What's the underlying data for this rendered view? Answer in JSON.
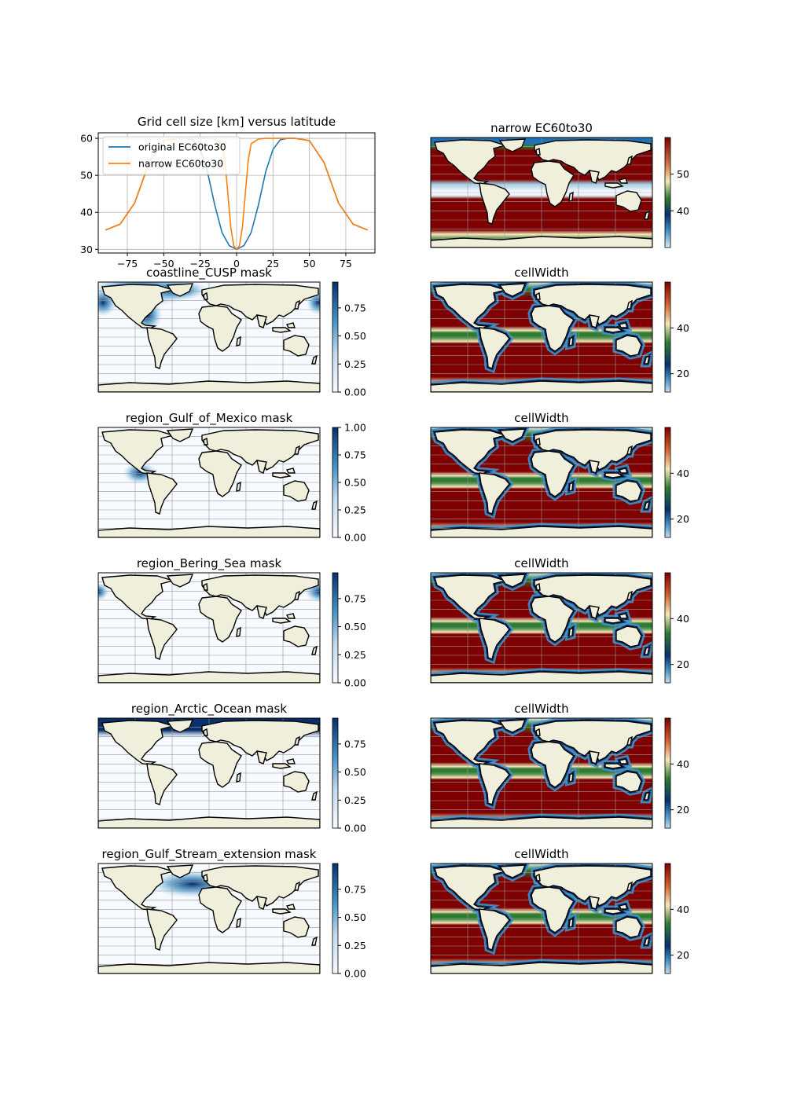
{
  "colors": {
    "blue": "#1f77b4",
    "orange": "#ff7f0e",
    "land": "#efefdb",
    "ocean_low": "#f7fbff",
    "mask_high": "#08306b"
  },
  "chart_data": [
    {
      "id": "profile",
      "type": "line",
      "title": "Grid cell size [km] versus latitude",
      "xlabel": "",
      "ylabel": "",
      "xlim": [
        -95,
        95
      ],
      "ylim": [
        29,
        61.5
      ],
      "xticks": [
        -75,
        -50,
        -25,
        0,
        25,
        50,
        75
      ],
      "yticks": [
        30,
        40,
        50,
        60
      ],
      "grid": true,
      "legend_position": "upper-left",
      "series": [
        {
          "name": "original EC60to30",
          "color": "#1f77b4",
          "x": [
            -90,
            -80,
            -70,
            -60,
            -50,
            -40,
            -35,
            -30,
            -25,
            -20,
            -15,
            -10,
            -5,
            0,
            5,
            10,
            15,
            20,
            25,
            30,
            35,
            40,
            50,
            60,
            70,
            80,
            90
          ],
          "y": [
            35.2,
            36.8,
            42.5,
            53.5,
            59.4,
            60.0,
            60.0,
            59.6,
            57.0,
            51.0,
            42.0,
            34.5,
            31.0,
            30.0,
            31.0,
            34.5,
            42.0,
            51.0,
            57.0,
            59.6,
            60.0,
            60.0,
            59.4,
            53.5,
            42.5,
            36.8,
            35.2
          ]
        },
        {
          "name": "narrow EC60to30",
          "color": "#ff7f0e",
          "x": [
            -90,
            -80,
            -70,
            -60,
            -50,
            -40,
            -30,
            -20,
            -15,
            -10,
            -8,
            -6,
            -4,
            -2,
            0,
            2,
            4,
            6,
            8,
            10,
            15,
            20,
            30,
            40,
            50,
            60,
            70,
            80,
            90
          ],
          "y": [
            35.2,
            36.8,
            42.5,
            53.5,
            59.4,
            60.0,
            60.0,
            60.0,
            59.8,
            58.5,
            54.0,
            45.0,
            36.0,
            31.0,
            30.0,
            31.0,
            36.0,
            45.0,
            54.0,
            58.5,
            59.8,
            60.0,
            60.0,
            60.0,
            59.4,
            53.5,
            42.5,
            36.8,
            35.2
          ]
        }
      ]
    },
    {
      "id": "narrow_map",
      "type": "heatmap",
      "title": "narrow EC60to30",
      "field": "cell_width",
      "colormap": "RdYlBu-like",
      "colorbar_ticks": [
        40,
        50
      ],
      "cbar_range": [
        30,
        60
      ],
      "lat_profile": {
        "lat": [
          -90,
          -75,
          -65,
          -60,
          -55,
          -50,
          -45,
          -10,
          -8,
          -6,
          -4,
          -2,
          0,
          2,
          4,
          6,
          8,
          10,
          40,
          45,
          55,
          60,
          75,
          90
        ],
        "value": [
          33,
          34,
          36,
          42,
          53,
          57,
          60,
          60,
          58,
          52,
          44,
          36,
          30,
          36,
          44,
          52,
          58,
          60,
          60,
          58,
          52,
          40,
          33,
          33
        ]
      }
    },
    {
      "id": "coastline_mask",
      "type": "heatmap",
      "title": "coastline_CUSP mask",
      "colorbar_ticks": [
        "0.00",
        "0.25",
        "0.50",
        "0.75"
      ],
      "region": "coastline_CUSP"
    },
    {
      "id": "cw1",
      "type": "heatmap",
      "title": "cellWidth",
      "colorbar_ticks": [
        20,
        40
      ]
    },
    {
      "id": "gulf_mask",
      "type": "heatmap",
      "title": "region_Gulf_of_Mexico mask",
      "colorbar_ticks": [
        "0.00",
        "0.25",
        "0.50",
        "0.75",
        "1.00"
      ],
      "region": "Gulf_of_Mexico"
    },
    {
      "id": "cw2",
      "type": "heatmap",
      "title": "cellWidth",
      "colorbar_ticks": [
        20,
        40
      ]
    },
    {
      "id": "bering_mask",
      "type": "heatmap",
      "title": "region_Bering_Sea mask",
      "colorbar_ticks": [
        "0.00",
        "0.25",
        "0.50",
        "0.75"
      ],
      "region": "Bering_Sea"
    },
    {
      "id": "cw3",
      "type": "heatmap",
      "title": "cellWidth",
      "colorbar_ticks": [
        20,
        40
      ]
    },
    {
      "id": "arctic_mask",
      "type": "heatmap",
      "title": "region_Arctic_Ocean mask",
      "colorbar_ticks": [
        "0.00",
        "0.25",
        "0.50",
        "0.75"
      ],
      "region": "Arctic_Ocean"
    },
    {
      "id": "cw4",
      "type": "heatmap",
      "title": "cellWidth",
      "colorbar_ticks": [
        20,
        40
      ]
    },
    {
      "id": "gs_mask",
      "type": "heatmap",
      "title": "region_Gulf_Stream_extension mask",
      "colorbar_ticks": [
        "0.00",
        "0.25",
        "0.50",
        "0.75"
      ],
      "region": "Gulf_Stream_extension"
    },
    {
      "id": "cw5",
      "type": "heatmap",
      "title": "cellWidth",
      "colorbar_ticks": [
        20,
        40
      ]
    }
  ]
}
